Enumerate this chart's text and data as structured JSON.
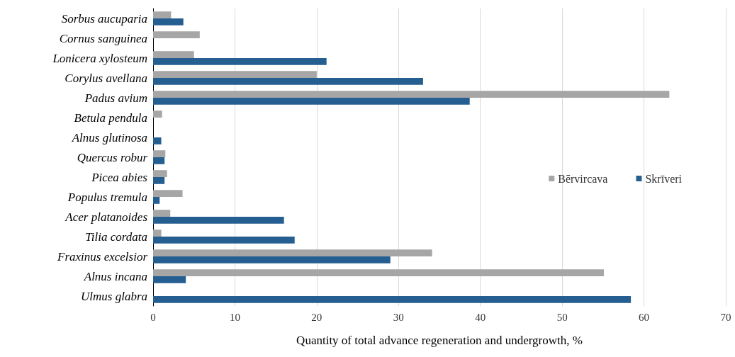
{
  "chart_data": {
    "type": "bar",
    "orientation": "horizontal",
    "xlabel": "Quantity of total advance regeneration and undergrowth, %",
    "categories": [
      "Sorbus aucuparia",
      "Cornus sanguinea",
      "Lonicera xylosteum",
      "Corylus avellana",
      "Padus avium",
      "Betula pendula",
      "Alnus glutinosa",
      "Quercus robur",
      "Picea abies",
      "Populus tremula",
      "Acer platanoides",
      "Tilia cordata",
      "Fraxinus excelsior",
      "Alnus incana",
      "Ulmus glabra"
    ],
    "series": [
      {
        "name": "Bērvircava",
        "color": "#a6a6a6",
        "values": [
          2.2,
          5.7,
          5.0,
          20.0,
          63.1,
          1.1,
          null,
          1.5,
          1.7,
          3.6,
          2.1,
          1.0,
          34.1,
          55.1,
          null
        ]
      },
      {
        "name": "Skrīveri",
        "color": "#255e91",
        "values": [
          3.7,
          null,
          21.2,
          33.0,
          38.7,
          null,
          1.0,
          1.4,
          1.4,
          0.8,
          16.0,
          17.3,
          29.0,
          4.0,
          58.4
        ]
      }
    ],
    "xlim": [
      0,
      70
    ],
    "xticks": [
      0,
      10,
      20,
      30,
      40,
      50,
      60,
      70
    ],
    "grid": "x",
    "legend": "right"
  }
}
